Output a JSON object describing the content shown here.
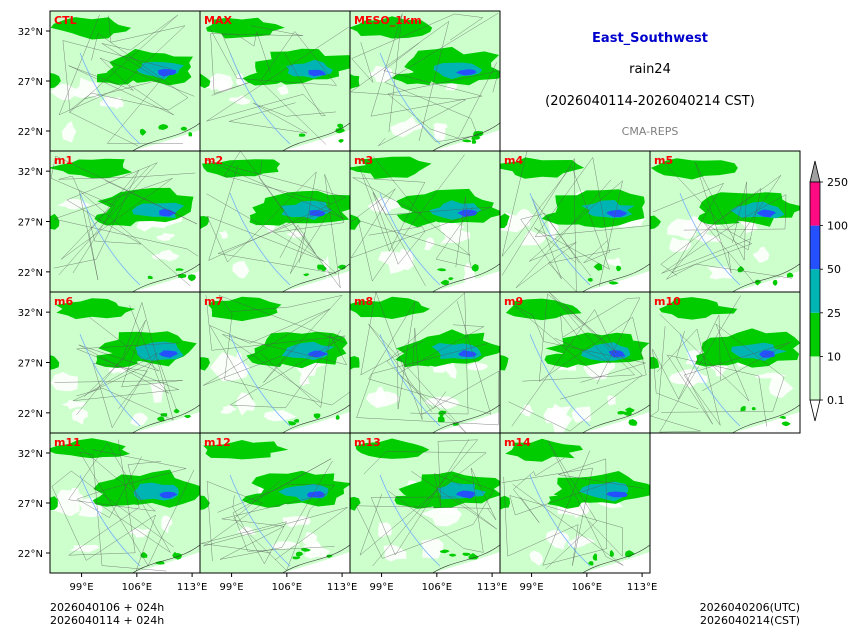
{
  "header": {
    "region": "East_Southwest",
    "variable": "rain24",
    "period": "(2026040114-2026040214 CST)",
    "source": "CMA-REPS",
    "region_color": "#0000cc",
    "source_color": "#808080"
  },
  "footer": {
    "init_utc": "2026040106  +  024h",
    "init_cst": "2026040114  +  024h",
    "valid_utc": "2026040206(UTC)",
    "valid_cst": "2026040214(CST)"
  },
  "chart_data": {
    "type": "heatmap",
    "description_fields": "24h accumulated precipitation ensemble postage-stamp maps",
    "panel_labels_row1": [
      "CTL",
      "MAX",
      "MESO_1km"
    ],
    "panel_labels_row2": [
      "m1",
      "m2",
      "m3",
      "m4",
      "m5"
    ],
    "panel_labels_row3": [
      "m6",
      "m7",
      "m8",
      "m9",
      "m10"
    ],
    "panel_labels_row4": [
      "m11",
      "m12",
      "m13",
      "m14"
    ],
    "label_color": "#ff0000",
    "x_ticks": [
      "99°E",
      "106°E",
      "113°E"
    ],
    "x_tick_values": [
      99,
      106,
      113
    ],
    "y_ticks": [
      "32°N",
      "27°N",
      "22°N"
    ],
    "y_tick_values": [
      32,
      27,
      22
    ],
    "xlim": [
      95,
      114
    ],
    "ylim": [
      20,
      34
    ],
    "colorbar": {
      "levels": [
        "0.1",
        "10",
        "25",
        "50",
        "100",
        "250"
      ],
      "colors": [
        "#ccffcc",
        "#00cc00",
        "#00b4b4",
        "#2450ff",
        "#ff0a82",
        "#a0a0a0"
      ],
      "extend_low": "#ffffff",
      "extend_high": "#a0a0a0"
    },
    "rain_bands": [
      {
        "level": "0.1",
        "color": "#ccffcc"
      },
      {
        "level": "10",
        "color": "#00cc00"
      },
      {
        "level": "25",
        "color": "#00b4b4"
      },
      {
        "level": "50",
        "color": "#2450ff"
      }
    ]
  }
}
